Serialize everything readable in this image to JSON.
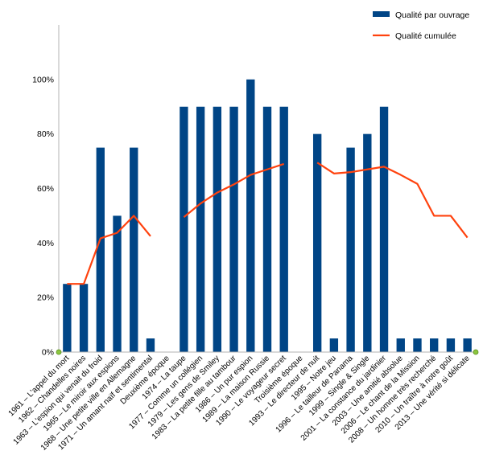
{
  "chart_data": {
    "type": "bar",
    "categories": [
      "1961 – L'appel du mort",
      "1962 – Chandelles noires",
      "1963 – L'espion qui venait du froid",
      "1965 – Le miroir aux espions",
      "1968 – Une petite ville en Allemagne",
      "1971 – Un amant naïf et sentimental",
      "Deuxième époque",
      "1974 – La taupe",
      "1977 – Comme un collégien",
      "1979 – Les gens de Smiley",
      "1983 – La petite fille au tambour",
      "1986 – Un pur espion",
      "1989 – La maison Russie",
      "1990 – Le voyageur secret",
      "Troisième époque",
      "1993 – Le directeur de nuit",
      "1995 – Notre jeu",
      "1996 – Le tailleur de Panama",
      "1999 – Single & Single",
      "2001 – La constance du jardinier",
      "2003 – Une amitié absolue",
      "2006 – Le chant de la Mission",
      "2008 – Un homme très recherché",
      "2010 – Un traître à notre goût",
      "2013 – Une vérité si délicate"
    ],
    "series": [
      {
        "name": "Qualité par ouvrage",
        "type": "bar",
        "color": "#004586",
        "values": [
          0.25,
          0.25,
          0.75,
          0.5,
          0.75,
          0.05,
          0,
          0.9,
          0.9,
          0.9,
          0.9,
          1.0,
          0.9,
          0.9,
          0,
          0.8,
          0.05,
          0.75,
          0.8,
          0.9,
          0.05,
          0.05,
          0.05,
          0.05,
          0.05
        ]
      },
      {
        "name": "Qualité cumulée",
        "type": "line",
        "color": "#ff420e",
        "values": [
          0.25,
          0.25,
          0.417,
          0.4375,
          0.5,
          0.425,
          null,
          0.495,
          0.545,
          0.585,
          0.615,
          0.65,
          0.67,
          0.69,
          null,
          0.695,
          0.655,
          0.66,
          0.67,
          0.68,
          0.65,
          0.617,
          0.5,
          0.5,
          0.42
        ]
      }
    ],
    "y_ticks": [
      "0%",
      "20%",
      "40%",
      "60%",
      "80%",
      "100%"
    ],
    "ylim": [
      0,
      1.2
    ],
    "grid": false,
    "legend_position": "top-right",
    "title": "",
    "xlabel": "",
    "ylabel": ""
  }
}
